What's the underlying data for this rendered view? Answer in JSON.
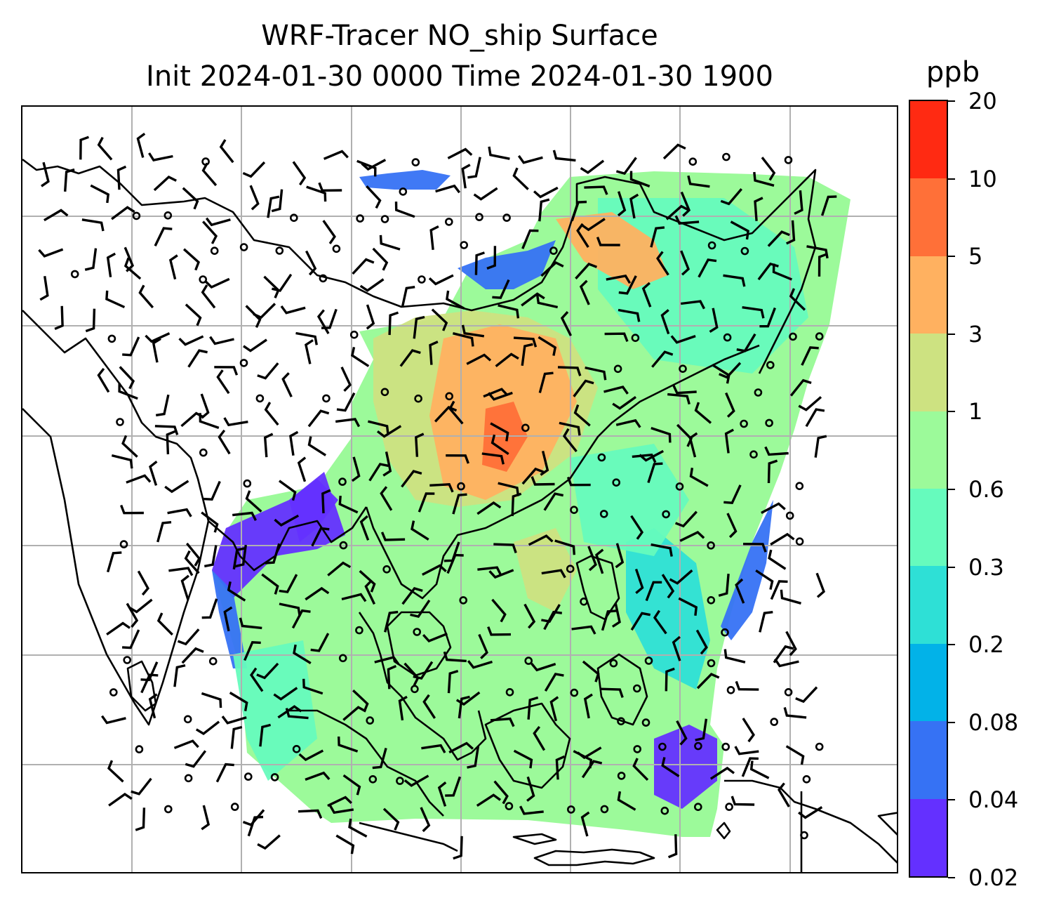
{
  "title": {
    "line1": "WRF-Tracer NO_ship Surface",
    "line2": "Init 2024-01-30 0000 Time 2024-01-30 1900"
  },
  "colorbar": {
    "unit": "ppb",
    "levels": [
      "0.02",
      "0.04",
      "0.08",
      "0.2",
      "0.3",
      "0.6",
      "1",
      "3",
      "5",
      "10",
      "20"
    ],
    "colors": [
      "#6430ff",
      "#3672f4",
      "#02b2e8",
      "#2ee0d6",
      "#66fbbd",
      "#9cfa9a",
      "#cde281",
      "#ffb160",
      "#ff7038",
      "#ff2a12"
    ]
  },
  "map": {
    "gridlines": true,
    "coastlines": true,
    "wind_barbs": true,
    "field_colors": {
      "background": "#9cfa9a",
      "low": "#66fbbd",
      "very_low": "#2ee0d6",
      "edge": "#3672f4",
      "fringe": "#6430ff",
      "elevated": "#cde281",
      "high": "#ffb160",
      "peak": "#ff7038"
    }
  }
}
